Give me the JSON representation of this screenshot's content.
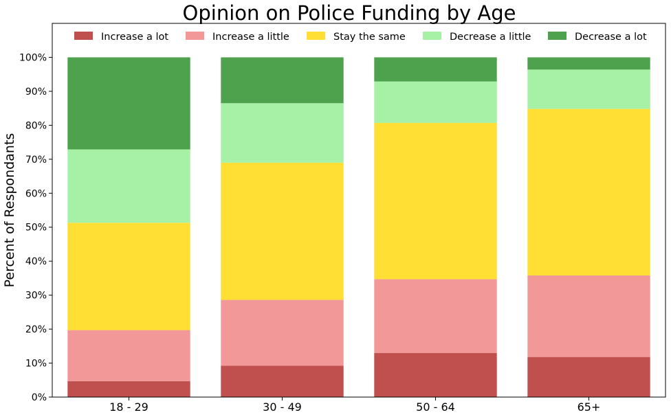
{
  "chart_data": {
    "type": "bar",
    "stacked": true,
    "title": "Opinion on Police Funding by Age",
    "xlabel": "",
    "ylabel": "Percent of Respondants",
    "ylim": [
      0,
      110
    ],
    "yticks": [
      "0%",
      "10%",
      "20%",
      "30%",
      "40%",
      "50%",
      "60%",
      "70%",
      "80%",
      "90%",
      "100%"
    ],
    "categories": [
      "18 - 29",
      "30 - 49",
      "50 - 64",
      "65+"
    ],
    "legend_position": "top",
    "grid": false,
    "series": [
      {
        "name": "Increase a lot",
        "color": "#c0504d",
        "values": [
          4.7,
          9.2,
          13.0,
          11.8
        ]
      },
      {
        "name": "Increase a little",
        "color": "#f29898",
        "values": [
          15.0,
          19.4,
          21.7,
          24.0
        ]
      },
      {
        "name": "Stay the same",
        "color": "#ffdf33",
        "values": [
          31.6,
          40.4,
          46.0,
          49.0
        ]
      },
      {
        "name": "Decrease a little",
        "color": "#a6f1a6",
        "values": [
          21.6,
          17.5,
          12.2,
          11.6
        ]
      },
      {
        "name": "Decrease a lot",
        "color": "#4ea24e",
        "values": [
          27.1,
          13.5,
          7.1,
          3.6
        ]
      }
    ]
  }
}
